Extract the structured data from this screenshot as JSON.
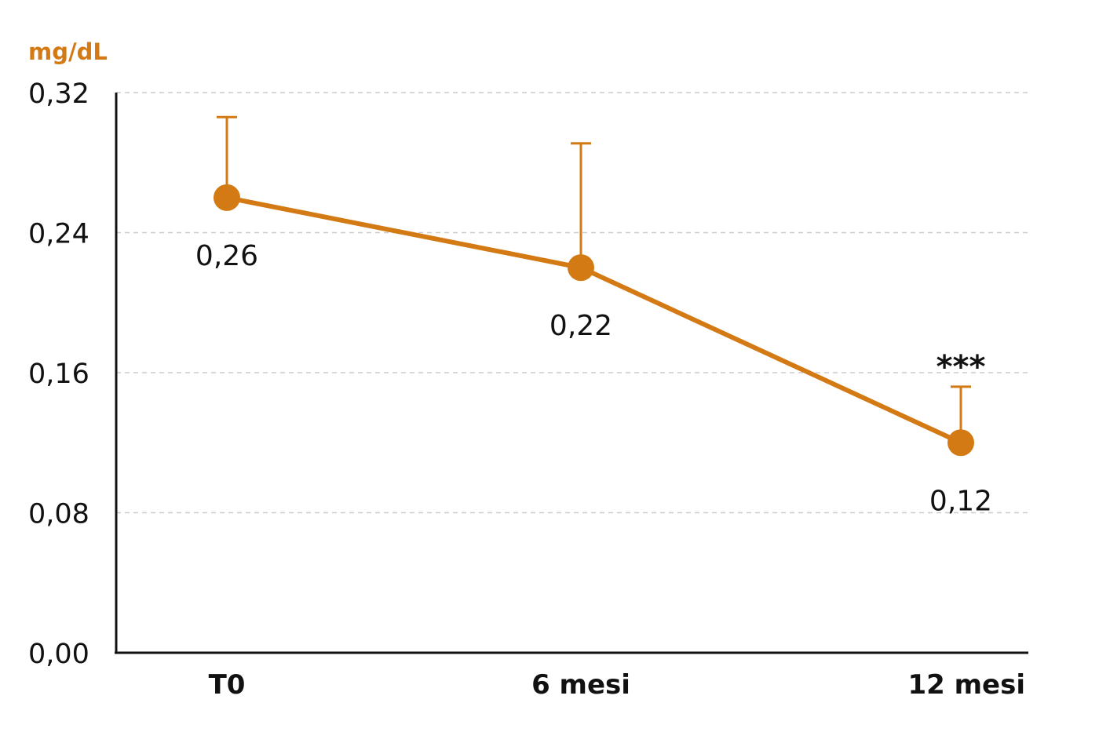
{
  "chart_data": {
    "type": "line",
    "ylabel": "mg/dL",
    "categories": [
      "T0",
      "6 mesi",
      "12 mesi"
    ],
    "values": [
      0.26,
      0.22,
      0.12
    ],
    "value_labels": [
      "0,26",
      "0,22",
      "0,12"
    ],
    "error_upper": [
      0.306,
      0.291,
      0.152
    ],
    "ylim": [
      0,
      0.32
    ],
    "yticks": [
      0,
      0.08,
      0.16,
      0.24,
      0.32
    ],
    "ytick_labels": [
      "0,00",
      "0,08",
      "0,16",
      "0,24",
      "0,32"
    ],
    "annotations": [
      {
        "category": "12 mesi",
        "text": "***"
      }
    ],
    "grid": "horizontal dashed",
    "colors": {
      "series": "#d47a14",
      "axis": "#111111",
      "grid": "#cccccc"
    }
  }
}
